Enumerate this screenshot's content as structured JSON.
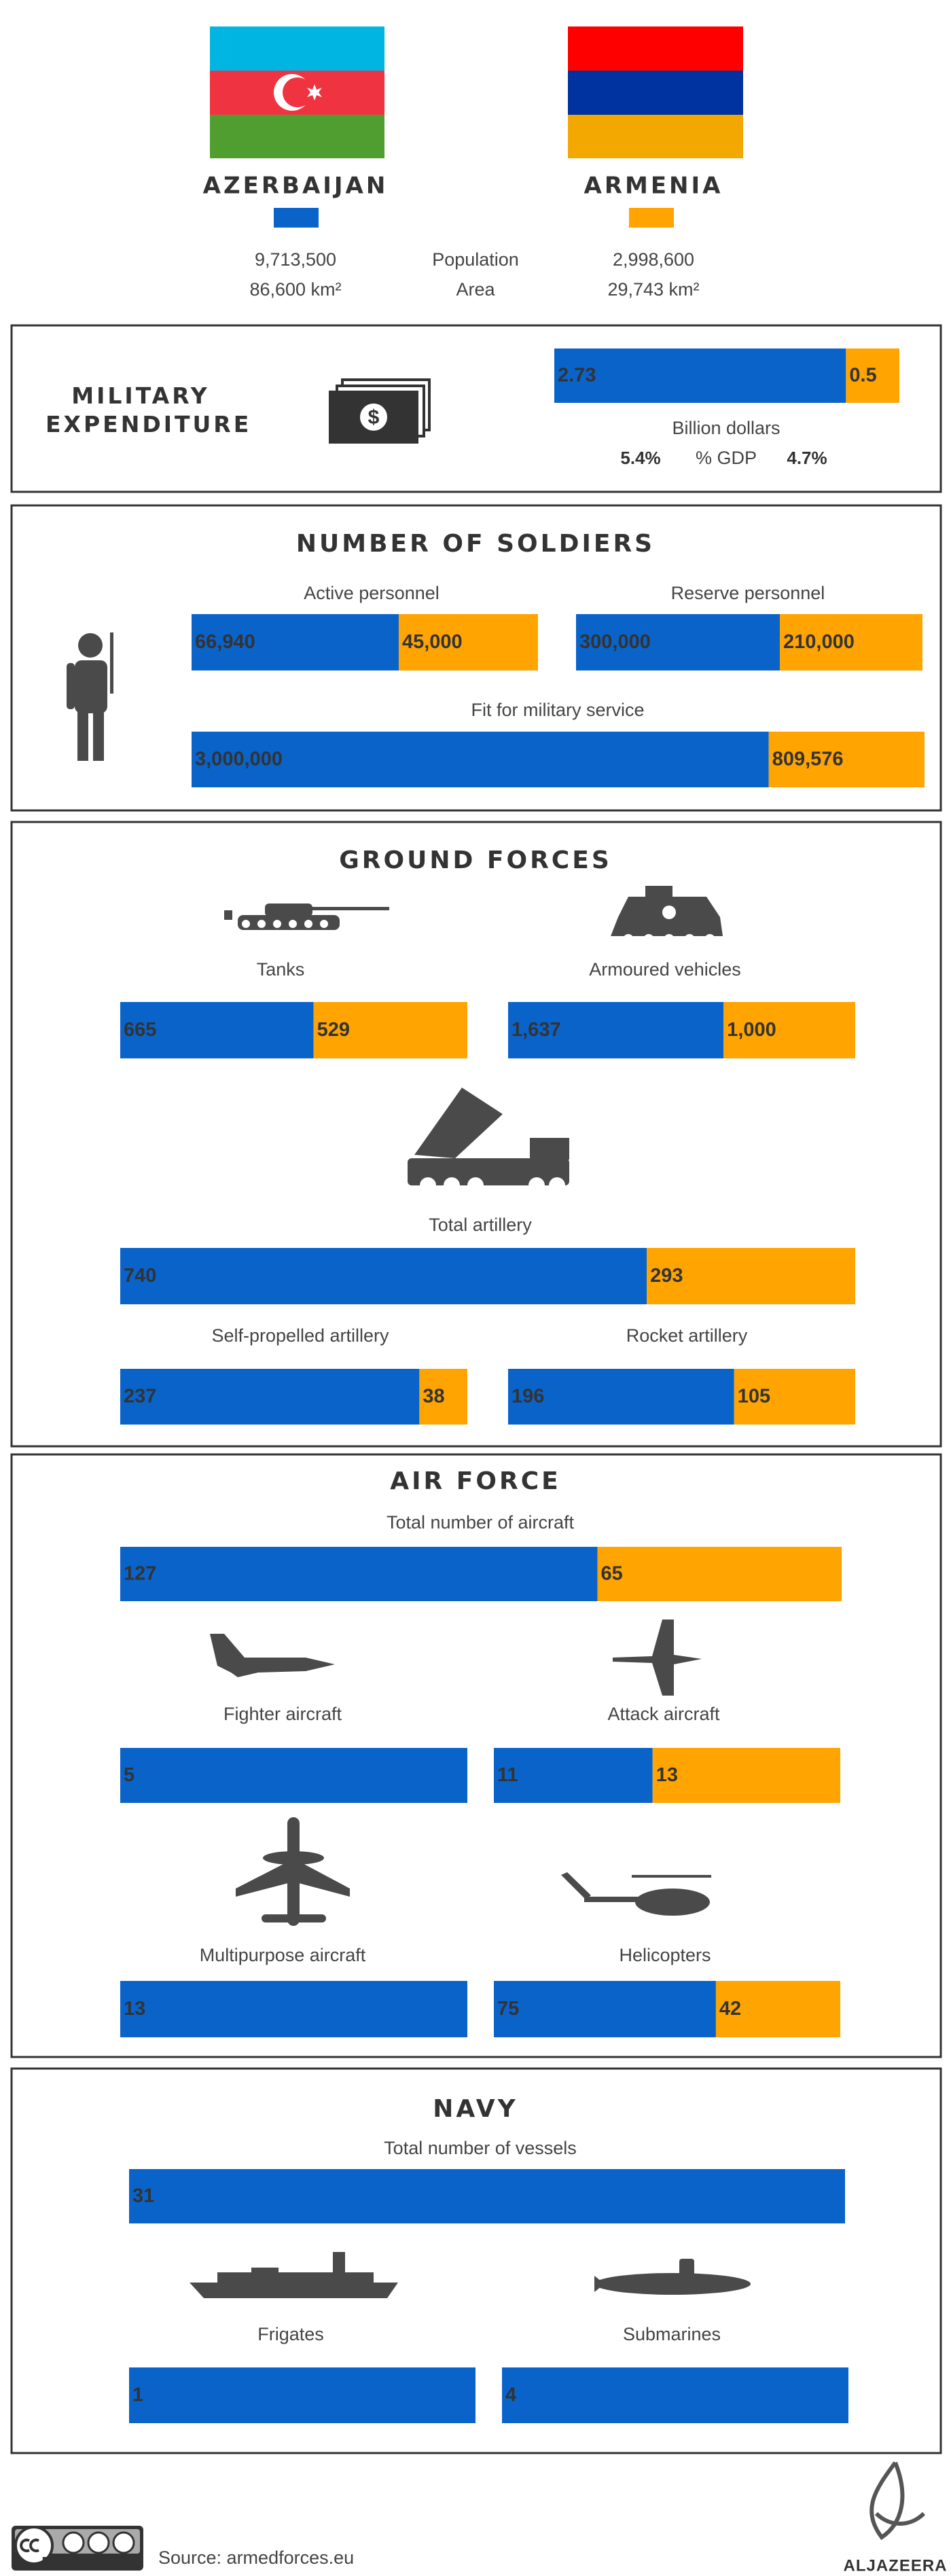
{
  "header": {
    "countries": [
      {
        "name": "AZERBAIJAN",
        "color": "#0a63c9",
        "population": "9,713,500",
        "area": "86,600 km²"
      },
      {
        "name": "ARMENIA",
        "color": "#ffa400",
        "population": "2,998,600",
        "area": "29,743 km²"
      }
    ],
    "population_label": "Population",
    "area_label": "Area"
  },
  "sections": [
    {
      "title": "MILITARY EXPENDITURE",
      "comparisons": [
        {
          "label": "Billion dollars",
          "values": [
            2.73,
            0.5
          ]
        }
      ],
      "gdp": {
        "label": "% GDP",
        "values": [
          "5.4%",
          "4.7%"
        ]
      }
    },
    {
      "title": "NUMBER OF SOLDIERS",
      "comparisons": [
        {
          "label": "Active personnel",
          "values": [
            66940,
            45000
          ],
          "value_labels": [
            "66,940",
            "45,000"
          ]
        },
        {
          "label": "Reserve personnel",
          "values": [
            300000,
            210000
          ],
          "value_labels": [
            "300,000",
            "210,000"
          ]
        },
        {
          "label": "Fit for military service",
          "values": [
            3000000,
            809576
          ],
          "value_labels": [
            "3,000,000",
            "809,576"
          ]
        }
      ]
    },
    {
      "title": "GROUND FORCES",
      "comparisons": [
        {
          "label": "Tanks",
          "values": [
            665,
            529
          ]
        },
        {
          "label": "Armoured vehicles",
          "values": [
            1637,
            1000
          ],
          "value_labels": [
            "1,637",
            "1,000"
          ]
        },
        {
          "label": "Total artillery",
          "values": [
            740,
            293
          ]
        },
        {
          "label": "Self-propelled artillery",
          "values": [
            237,
            38
          ]
        },
        {
          "label": "Rocket artillery",
          "values": [
            196,
            105
          ]
        }
      ]
    },
    {
      "title": "AIR FORCE",
      "comparisons": [
        {
          "label": "Total number of aircraft",
          "values": [
            127,
            65
          ]
        },
        {
          "label": "Fighter aircraft",
          "values": [
            5
          ]
        },
        {
          "label": "Attack aircraft",
          "values": [
            11,
            13
          ]
        },
        {
          "label": "Multipurpose aircraft",
          "values": [
            13
          ]
        },
        {
          "label": "Helicopters",
          "values": [
            75,
            42
          ]
        }
      ]
    },
    {
      "title": "NAVY",
      "comparisons": [
        {
          "label": "Total number of vessels",
          "values": [
            31
          ]
        },
        {
          "label": "Frigates",
          "values": [
            1
          ]
        },
        {
          "label": "Submarines",
          "values": [
            4
          ]
        }
      ]
    }
  ],
  "footer": {
    "license": [
      "BY",
      "NC",
      "SA"
    ],
    "source": "Source: armedforces.eu",
    "logo": "ALJAZEERA"
  }
}
